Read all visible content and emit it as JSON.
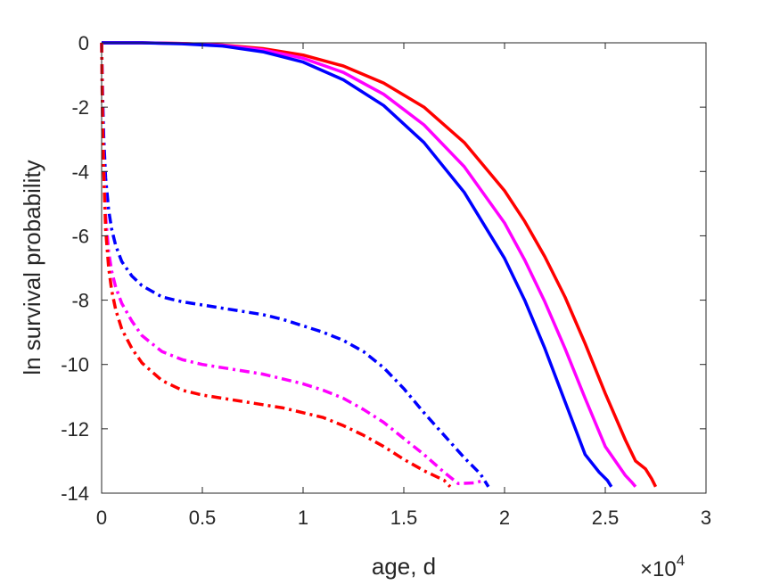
{
  "chart_data": {
    "type": "line",
    "title": "",
    "xlabel": "age, d",
    "ylabel": "ln survival probability",
    "xlim": [
      0,
      30000
    ],
    "ylim": [
      -14,
      0
    ],
    "x_exponent_label": "×10",
    "x_exponent_power": "4",
    "x_tick_values": [
      0,
      5000,
      10000,
      15000,
      20000,
      25000,
      30000
    ],
    "x_tick_labels": [
      "0",
      "0.5",
      "1",
      "1.5",
      "2",
      "2.5",
      "3"
    ],
    "y_tick_values": [
      0,
      -2,
      -4,
      -6,
      -8,
      -10,
      -12,
      -14
    ],
    "y_tick_labels": [
      "0",
      "-2",
      "-4",
      "-6",
      "-8",
      "-10",
      "-12",
      "-14"
    ],
    "grid": false,
    "legend": "none",
    "series": [
      {
        "color": "#ff0000",
        "style": "solid",
        "x": [
          0,
          2000,
          4000,
          6000,
          8000,
          10000,
          12000,
          14000,
          16000,
          18000,
          20000,
          21000,
          22000,
          23000,
          24000,
          25000,
          26000,
          26500,
          27000,
          27300,
          27500
        ],
        "y": [
          0,
          0,
          -0.02,
          -0.07,
          -0.18,
          -0.38,
          -0.72,
          -1.25,
          -2.0,
          -3.1,
          -4.6,
          -5.55,
          -6.65,
          -7.9,
          -9.35,
          -10.9,
          -12.35,
          -13.0,
          -13.25,
          -13.55,
          -13.8
        ]
      },
      {
        "color": "#ff00ff",
        "style": "solid",
        "x": [
          0,
          2000,
          4000,
          6000,
          8000,
          10000,
          12000,
          14000,
          16000,
          18000,
          20000,
          21000,
          22000,
          23000,
          24000,
          25000,
          26000,
          26300,
          26500
        ],
        "y": [
          0,
          0,
          -0.02,
          -0.08,
          -0.22,
          -0.48,
          -0.92,
          -1.6,
          -2.55,
          -3.85,
          -5.6,
          -6.75,
          -8.05,
          -9.5,
          -11.05,
          -12.55,
          -13.45,
          -13.65,
          -13.8
        ]
      },
      {
        "color": "#0000ff",
        "style": "solid",
        "x": [
          0,
          2000,
          4000,
          6000,
          8000,
          10000,
          12000,
          14000,
          16000,
          18000,
          20000,
          21000,
          22000,
          23000,
          24000,
          24700,
          25100,
          25300
        ],
        "y": [
          0,
          0,
          -0.03,
          -0.1,
          -0.28,
          -0.6,
          -1.15,
          -1.95,
          -3.1,
          -4.65,
          -6.7,
          -8.0,
          -9.5,
          -11.15,
          -12.8,
          -13.35,
          -13.6,
          -13.8
        ]
      },
      {
        "color": "#0000ff",
        "style": "dashdot",
        "x": [
          0,
          50,
          100,
          200,
          350,
          500,
          700,
          1000,
          1500,
          2000,
          3000,
          4000,
          5000,
          6000,
          7000,
          8000,
          9000,
          10000,
          11000,
          12000,
          13000,
          14000,
          15000,
          16000,
          17000,
          18000,
          18800,
          19200
        ],
        "y": [
          0,
          -1.6,
          -2.9,
          -4.2,
          -5.2,
          -5.8,
          -6.3,
          -6.8,
          -7.25,
          -7.55,
          -7.9,
          -8.05,
          -8.15,
          -8.25,
          -8.35,
          -8.45,
          -8.6,
          -8.8,
          -9.0,
          -9.25,
          -9.6,
          -10.1,
          -10.75,
          -11.5,
          -12.2,
          -12.9,
          -13.4,
          -13.8
        ]
      },
      {
        "color": "#ff00ff",
        "style": "dashdot",
        "x": [
          0,
          50,
          100,
          200,
          350,
          500,
          700,
          1000,
          1500,
          2000,
          3000,
          4000,
          5000,
          6000,
          7000,
          8000,
          9000,
          10000,
          11000,
          12000,
          13000,
          14000,
          15000,
          16000,
          17000,
          17700,
          18500,
          19000
        ],
        "y": [
          0,
          -2.4,
          -3.8,
          -5.4,
          -6.5,
          -7.1,
          -7.6,
          -8.1,
          -8.65,
          -9.1,
          -9.6,
          -9.85,
          -10.0,
          -10.1,
          -10.2,
          -10.3,
          -10.45,
          -10.6,
          -10.8,
          -11.05,
          -11.4,
          -11.8,
          -12.3,
          -12.8,
          -13.35,
          -13.7,
          -13.68,
          -13.6
        ]
      },
      {
        "color": "#ff0000",
        "style": "dashdot",
        "x": [
          0,
          50,
          100,
          200,
          350,
          500,
          700,
          1000,
          1500,
          2000,
          3000,
          4000,
          5000,
          6000,
          7000,
          8000,
          9000,
          10000,
          11000,
          12000,
          13000,
          14000,
          15000,
          16000,
          17000,
          17300
        ],
        "y": [
          0,
          -2.6,
          -4.0,
          -5.8,
          -7.0,
          -7.7,
          -8.3,
          -8.9,
          -9.5,
          -9.95,
          -10.5,
          -10.8,
          -10.95,
          -11.05,
          -11.15,
          -11.25,
          -11.35,
          -11.5,
          -11.65,
          -11.9,
          -12.2,
          -12.55,
          -12.95,
          -13.3,
          -13.6,
          -13.8
        ]
      }
    ]
  }
}
